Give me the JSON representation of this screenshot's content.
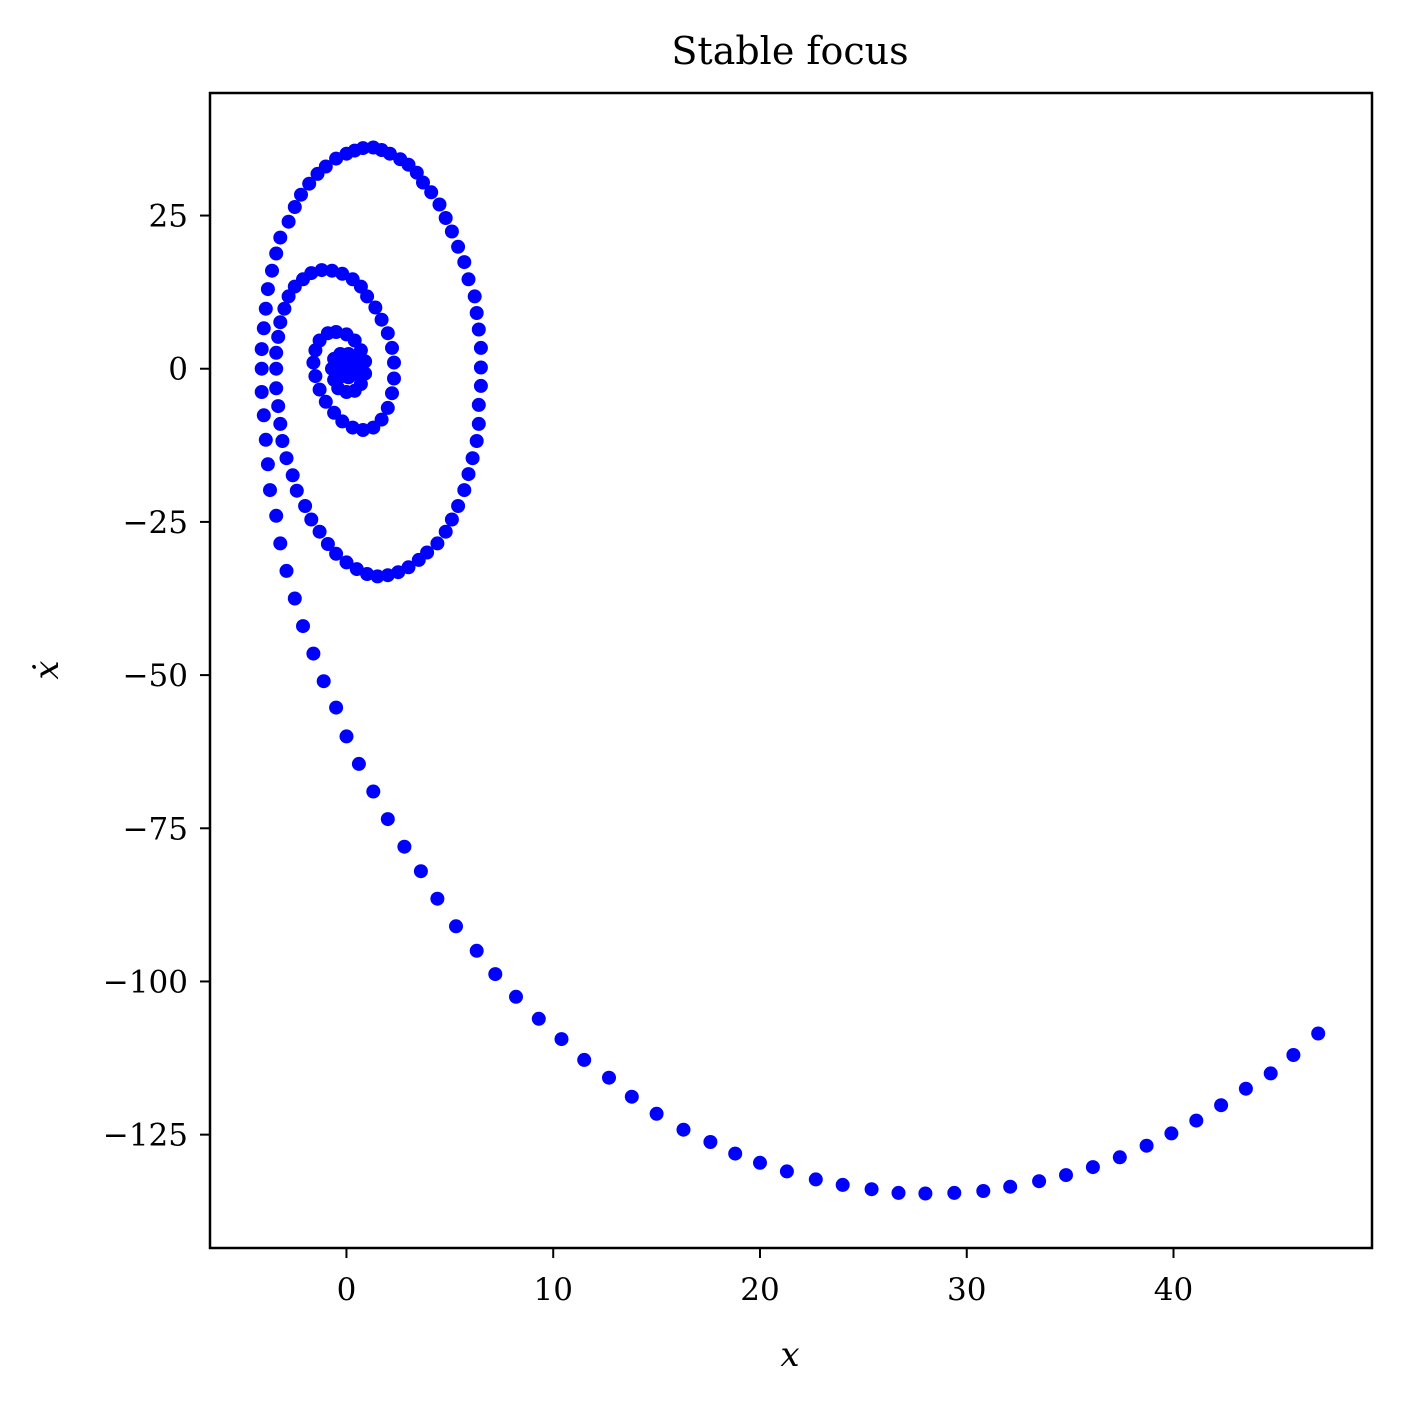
{
  "chart_data": {
    "type": "scatter",
    "title": "Stable focus",
    "xlabel": "x",
    "ylabel": "ẋ",
    "xlim": [
      -6.6,
      49.6
    ],
    "ylim": [
      -143.5,
      45.0
    ],
    "x_ticks": [
      0,
      10,
      20,
      30,
      40
    ],
    "x_tick_labels": [
      "0",
      "10",
      "20",
      "30",
      "40"
    ],
    "y_ticks": [
      25,
      0,
      -25,
      -50,
      -75,
      -100,
      -125
    ],
    "y_tick_labels": [
      "25",
      "0",
      "−25",
      "−50",
      "−75",
      "−100",
      "−125"
    ],
    "grid": false,
    "legend": "none",
    "marker_color": "#0000ff",
    "series": [
      {
        "points": [
          [
            47.0,
            -108.5
          ],
          [
            45.8,
            -112.0
          ],
          [
            44.7,
            -115.0
          ],
          [
            43.5,
            -117.5
          ],
          [
            42.3,
            -120.2
          ],
          [
            41.1,
            -122.7
          ],
          [
            39.9,
            -124.8
          ],
          [
            38.7,
            -126.8
          ],
          [
            37.4,
            -128.7
          ],
          [
            36.1,
            -130.3
          ],
          [
            34.8,
            -131.6
          ],
          [
            33.5,
            -132.6
          ],
          [
            32.1,
            -133.5
          ],
          [
            30.8,
            -134.2
          ],
          [
            29.4,
            -134.5
          ],
          [
            28.0,
            -134.6
          ],
          [
            26.7,
            -134.5
          ],
          [
            25.4,
            -133.9
          ],
          [
            24.0,
            -133.2
          ],
          [
            22.7,
            -132.3
          ],
          [
            21.3,
            -131.0
          ],
          [
            20.0,
            -129.6
          ],
          [
            18.8,
            -128.1
          ],
          [
            17.6,
            -126.2
          ],
          [
            16.3,
            -124.2
          ],
          [
            15.0,
            -121.6
          ],
          [
            13.8,
            -118.8
          ],
          [
            12.7,
            -115.7
          ],
          [
            11.5,
            -112.8
          ],
          [
            10.4,
            -109.4
          ],
          [
            9.3,
            -106.1
          ],
          [
            8.2,
            -102.5
          ],
          [
            7.2,
            -98.8
          ],
          [
            6.3,
            -95.0
          ],
          [
            5.3,
            -91.0
          ],
          [
            4.4,
            -86.5
          ],
          [
            3.6,
            -82.0
          ],
          [
            2.8,
            -78.0
          ],
          [
            2.0,
            -73.5
          ],
          [
            1.3,
            -69.0
          ],
          [
            0.6,
            -64.5
          ],
          [
            0.0,
            -60.0
          ],
          [
            -0.5,
            -55.3
          ],
          [
            -1.1,
            -51.0
          ],
          [
            -1.6,
            -46.5
          ],
          [
            -2.1,
            -42.0
          ],
          [
            -2.5,
            -37.5
          ],
          [
            -2.9,
            -33.0
          ],
          [
            -3.2,
            -28.5
          ],
          [
            -3.4,
            -24.0
          ],
          [
            -3.7,
            -19.8
          ],
          [
            -3.8,
            -15.6
          ],
          [
            -3.9,
            -11.6
          ],
          [
            -4.0,
            -7.6
          ],
          [
            -4.1,
            -3.8
          ],
          [
            -4.1,
            0.0
          ],
          [
            -4.1,
            3.2
          ],
          [
            -4.0,
            6.6
          ],
          [
            -3.9,
            9.8
          ],
          [
            -3.8,
            13.0
          ],
          [
            -3.6,
            16.0
          ],
          [
            -3.4,
            18.8
          ],
          [
            -3.2,
            21.4
          ],
          [
            -2.8,
            24.0
          ],
          [
            -2.5,
            26.4
          ],
          [
            -2.2,
            28.4
          ],
          [
            -1.8,
            30.2
          ],
          [
            -1.4,
            31.8
          ],
          [
            -1.0,
            33.0
          ],
          [
            -0.5,
            34.3
          ],
          [
            0.0,
            35.1
          ],
          [
            0.4,
            35.6
          ],
          [
            0.8,
            36.0
          ],
          [
            1.3,
            36.1
          ],
          [
            1.7,
            35.7
          ],
          [
            2.1,
            35.1
          ],
          [
            2.6,
            34.2
          ],
          [
            3.0,
            33.3
          ],
          [
            3.4,
            32.0
          ],
          [
            3.7,
            30.4
          ],
          [
            4.1,
            28.8
          ],
          [
            4.5,
            26.8
          ],
          [
            4.8,
            24.6
          ],
          [
            5.1,
            22.4
          ],
          [
            5.4,
            19.9
          ],
          [
            5.7,
            17.4
          ],
          [
            5.9,
            14.6
          ],
          [
            6.2,
            11.8
          ],
          [
            6.3,
            9.1
          ],
          [
            6.4,
            6.4
          ],
          [
            6.5,
            3.4
          ],
          [
            6.5,
            0.2
          ],
          [
            6.5,
            -2.8
          ],
          [
            6.4,
            -5.9
          ],
          [
            6.4,
            -9.0
          ],
          [
            6.3,
            -11.8
          ],
          [
            6.1,
            -14.6
          ],
          [
            5.9,
            -17.2
          ],
          [
            5.7,
            -19.8
          ],
          [
            5.4,
            -22.4
          ],
          [
            5.1,
            -24.6
          ],
          [
            4.8,
            -26.6
          ],
          [
            4.4,
            -28.5
          ],
          [
            3.9,
            -30.0
          ],
          [
            3.5,
            -31.2
          ],
          [
            3.0,
            -32.4
          ],
          [
            2.5,
            -33.2
          ],
          [
            2.0,
            -33.7
          ],
          [
            1.5,
            -33.9
          ],
          [
            1.0,
            -33.5
          ],
          [
            0.5,
            -32.7
          ],
          [
            0.0,
            -31.6
          ],
          [
            -0.5,
            -30.2
          ],
          [
            -0.9,
            -28.6
          ],
          [
            -1.3,
            -26.6
          ],
          [
            -1.7,
            -24.6
          ],
          [
            -2.0,
            -22.4
          ],
          [
            -2.4,
            -19.9
          ],
          [
            -2.6,
            -17.4
          ],
          [
            -2.9,
            -14.6
          ],
          [
            -3.1,
            -11.8
          ],
          [
            -3.2,
            -9.0
          ],
          [
            -3.3,
            -6.1
          ],
          [
            -3.4,
            -3.2
          ],
          [
            -3.4,
            0.0
          ],
          [
            -3.4,
            2.6
          ],
          [
            -3.3,
            5.2
          ],
          [
            -3.2,
            7.6
          ],
          [
            -3.0,
            9.8
          ],
          [
            -2.8,
            11.8
          ],
          [
            -2.5,
            13.4
          ],
          [
            -2.1,
            14.6
          ],
          [
            -1.7,
            15.6
          ],
          [
            -1.2,
            16.1
          ],
          [
            -0.7,
            16.0
          ],
          [
            -0.2,
            15.5
          ],
          [
            0.3,
            14.6
          ],
          [
            0.7,
            13.4
          ],
          [
            1.0,
            11.8
          ],
          [
            1.4,
            10.0
          ],
          [
            1.7,
            8.0
          ],
          [
            2.0,
            5.8
          ],
          [
            2.2,
            3.4
          ],
          [
            2.3,
            1.0
          ],
          [
            2.3,
            -1.6
          ],
          [
            2.2,
            -4.0
          ],
          [
            2.0,
            -6.4
          ],
          [
            1.7,
            -8.3
          ],
          [
            1.3,
            -9.6
          ],
          [
            0.8,
            -10.0
          ],
          [
            0.3,
            -9.6
          ],
          [
            -0.2,
            -8.6
          ],
          [
            -0.6,
            -7.2
          ],
          [
            -1.0,
            -5.4
          ],
          [
            -1.3,
            -3.4
          ],
          [
            -1.5,
            -1.2
          ],
          [
            -1.6,
            1.0
          ],
          [
            -1.5,
            3.0
          ],
          [
            -1.3,
            4.6
          ],
          [
            -0.9,
            5.8
          ],
          [
            -0.5,
            6.0
          ],
          [
            0.0,
            5.6
          ],
          [
            0.4,
            4.6
          ],
          [
            0.7,
            3.0
          ],
          [
            0.9,
            1.2
          ],
          [
            0.9,
            -0.8
          ],
          [
            0.7,
            -2.5
          ],
          [
            0.4,
            -3.6
          ],
          [
            0.0,
            -3.8
          ],
          [
            -0.4,
            -3.2
          ],
          [
            -0.6,
            -1.8
          ],
          [
            -0.7,
            0.0
          ],
          [
            -0.6,
            1.6
          ],
          [
            -0.3,
            2.4
          ],
          [
            0.1,
            2.4
          ],
          [
            0.4,
            1.6
          ],
          [
            0.5,
            0.4
          ],
          [
            0.4,
            -0.8
          ],
          [
            0.1,
            -1.4
          ],
          [
            -0.2,
            -1.2
          ],
          [
            -0.3,
            -0.4
          ],
          [
            -0.2,
            0.4
          ],
          [
            0.0,
            0.8
          ],
          [
            0.2,
            0.4
          ],
          [
            0.2,
            -0.2
          ],
          [
            0.0,
            -0.4
          ],
          [
            -0.1,
            0.0
          ],
          [
            0.0,
            0.2
          ],
          [
            0.1,
            0.0
          ],
          [
            0.0,
            0.0
          ]
        ]
      }
    ]
  }
}
